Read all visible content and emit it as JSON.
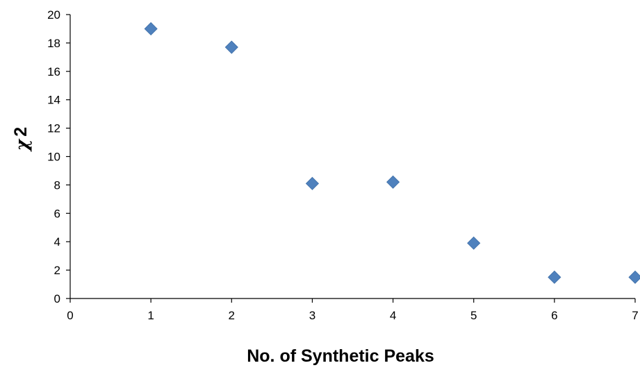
{
  "chart_data": {
    "type": "scatter",
    "title": "",
    "xlabel": "No. of Synthetic Peaks",
    "ylabel": "χ 2",
    "xlim": [
      0,
      7
    ],
    "ylim": [
      0,
      20
    ],
    "x_ticks": [
      0,
      1,
      2,
      3,
      4,
      5,
      6,
      7
    ],
    "y_ticks": [
      0,
      2,
      4,
      6,
      8,
      10,
      12,
      14,
      16,
      18,
      20
    ],
    "grid": false,
    "legend": "none",
    "marker": "diamond",
    "series": [
      {
        "color": "#4F81BD",
        "points": [
          {
            "x": 1,
            "y": 19.0
          },
          {
            "x": 2,
            "y": 17.7
          },
          {
            "x": 3,
            "y": 8.1
          },
          {
            "x": 4,
            "y": 8.2
          },
          {
            "x": 5,
            "y": 3.9
          },
          {
            "x": 6,
            "y": 1.5
          },
          {
            "x": 7,
            "y": 1.5
          }
        ]
      }
    ]
  }
}
